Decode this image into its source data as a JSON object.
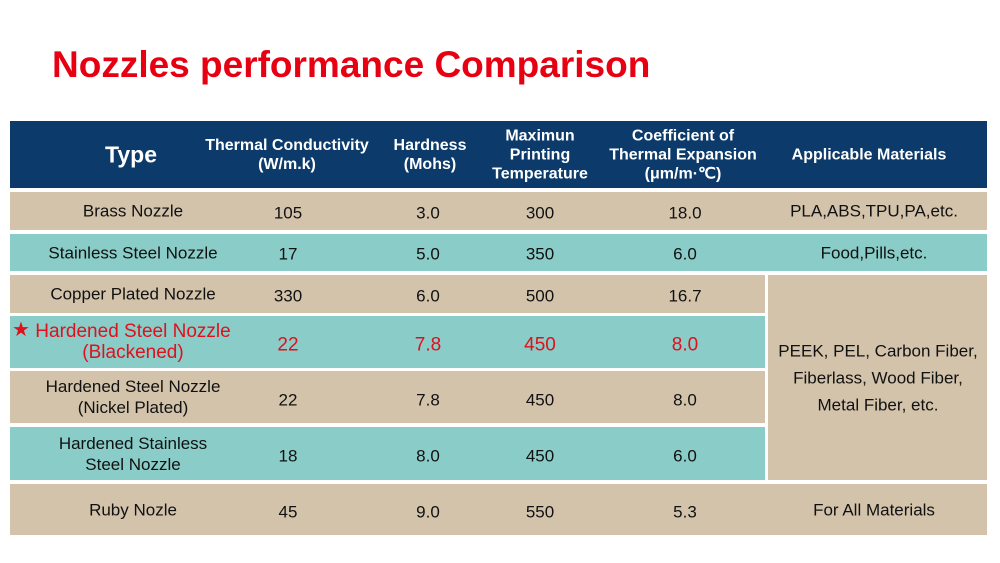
{
  "title": "Nozzles performance Comparison",
  "headers": [
    "Type",
    "Thermal Conductivity\n(W/m.k)",
    "Hardness\n(Mohs)",
    "Maximun\nPrinting\nTemperature",
    "Coefficient of\nThermal Expansion\n(μm/m·℃)",
    "Applicable Materials"
  ],
  "rows": [
    {
      "type": "Brass Nozzle",
      "tc": "105",
      "hardness": "3.0",
      "temp": "300",
      "coeff": "18.0",
      "materials": "PLA,ABS,TPU,PA,etc."
    },
    {
      "type": "Stainless Steel Nozzle",
      "tc": "17",
      "hardness": "5.0",
      "temp": "350",
      "coeff": "6.0",
      "materials": "Food,Pills,etc."
    },
    {
      "type": "Copper Plated Nozzle",
      "tc": "330",
      "hardness": "6.0",
      "temp": "500",
      "coeff": "16.7"
    },
    {
      "type": "Hardened Steel Nozzle\n(Blackened)",
      "tc": "22",
      "hardness": "7.8",
      "temp": "450",
      "coeff": "8.0"
    },
    {
      "type": "Hardened Steel Nozzle\n(Nickel Plated)",
      "tc": "22",
      "hardness": "7.8",
      "temp": "450",
      "coeff": "8.0"
    },
    {
      "type": "Hardened Stainless\nSteel Nozzle",
      "tc": "18",
      "hardness": "8.0",
      "temp": "450",
      "coeff": "6.0"
    },
    {
      "type": "Ruby Nozle",
      "tc": "45",
      "hardness": "9.0",
      "temp": "550",
      "coeff": "5.3",
      "materials": "For All Materials"
    }
  ],
  "merged_materials": "PEEK, PEL, Carbon Fiber,\nFiberlass, Wood Fiber,\nMetal Fiber, etc.",
  "colors": {
    "header": "#0b3a6b",
    "tan": "#d3c3ab",
    "teal": "#89ccc8",
    "highlight": "#e0101c"
  }
}
